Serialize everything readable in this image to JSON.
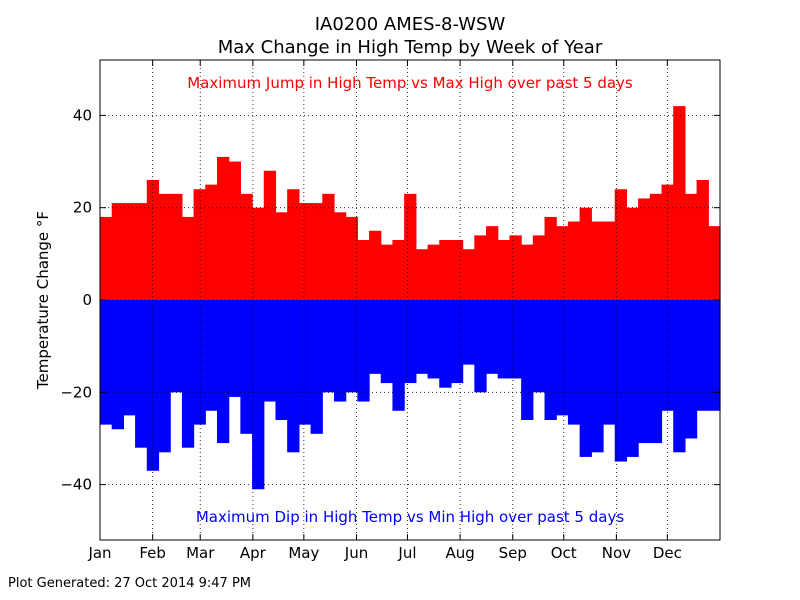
{
  "chart_data": {
    "type": "bar",
    "title": "IA0200 AMES-8-WSW",
    "subtitle": "Max Change in High Temp by Week of Year",
    "ylabel": "Temperature Change °F",
    "xlabel": "",
    "ylim": [
      -52,
      52
    ],
    "yticks": [
      -40,
      -20,
      0,
      20,
      40
    ],
    "xlim": [
      1,
      366
    ],
    "month_ticks": [
      {
        "label": "Jan",
        "day": 1
      },
      {
        "label": "Feb",
        "day": 32
      },
      {
        "label": "Mar",
        "day": 60
      },
      {
        "label": "Apr",
        "day": 91
      },
      {
        "label": "May",
        "day": 121
      },
      {
        "label": "Jun",
        "day": 152
      },
      {
        "label": "Jul",
        "day": 182
      },
      {
        "label": "Aug",
        "day": 213
      },
      {
        "label": "Sep",
        "day": 244
      },
      {
        "label": "Oct",
        "day": 274
      },
      {
        "label": "Nov",
        "day": 305
      },
      {
        "label": "Dec",
        "day": 335
      }
    ],
    "grid": true,
    "series": [
      {
        "color": "#ff0000",
        "values": [
          18,
          21,
          21,
          21,
          26,
          23,
          23,
          18,
          24,
          25,
          31,
          30,
          23,
          20,
          28,
          19,
          24,
          21,
          21,
          23,
          19,
          18,
          13,
          15,
          12,
          13,
          23,
          11,
          12,
          13,
          13,
          11,
          14,
          16,
          13,
          14,
          12,
          14,
          18,
          16,
          17,
          20,
          17,
          17,
          24,
          20,
          22,
          23,
          25,
          42,
          23,
          26,
          16
        ]
      },
      {
        "color": "#0000ff",
        "values": [
          -27,
          -28,
          -25,
          -32,
          -37,
          -33,
          -20,
          -32,
          -27,
          -24,
          -31,
          -21,
          -29,
          -41,
          -22,
          -26,
          -33,
          -27,
          -29,
          -20,
          -22,
          -20,
          -22,
          -16,
          -18,
          -24,
          -18,
          -16,
          -17,
          -19,
          -18,
          -14,
          -20,
          -16,
          -17,
          -17,
          -26,
          -20,
          -26,
          -25,
          -27,
          -34,
          -33,
          -27,
          -35,
          -34,
          -31,
          -31,
          -24,
          -33,
          -30,
          -24,
          -24
        ]
      }
    ],
    "annotations": [
      {
        "text": "Maximum Jump in High Temp vs Max High over past 5 days",
        "color": "#ff0000"
      },
      {
        "text": "Maximum Dip in High Temp vs Min High over past 5 days",
        "color": "#0000ff"
      }
    ]
  },
  "footer": "Plot Generated: 27 Oct 2014 9:47 PM"
}
